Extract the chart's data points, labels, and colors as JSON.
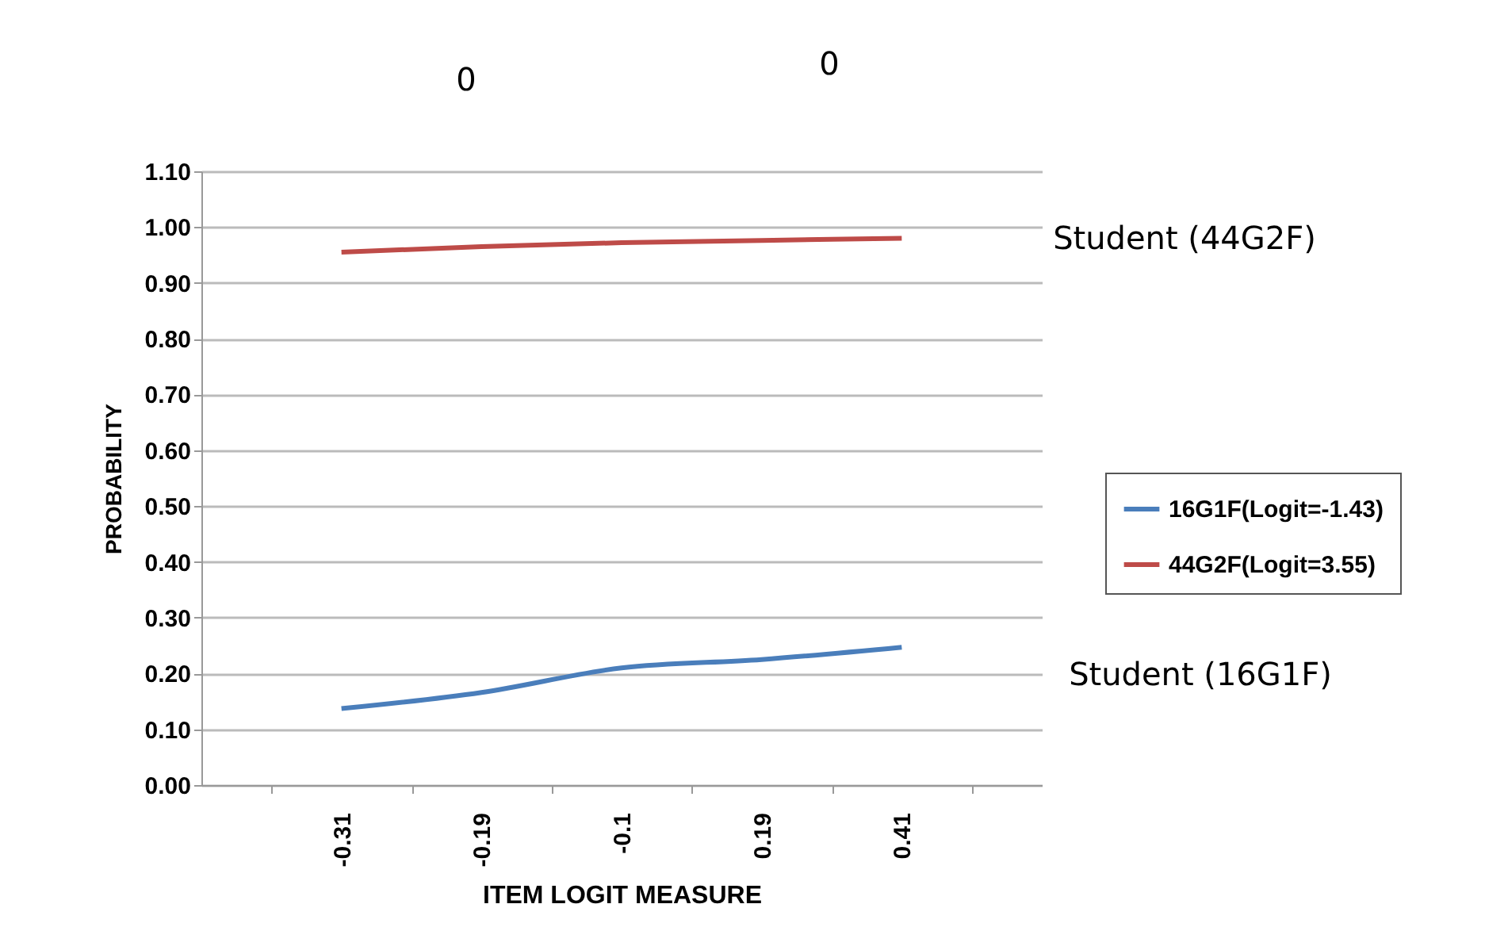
{
  "chart_data": {
    "type": "line",
    "xlabel": "ITEM LOGIT MEASURE",
    "ylabel": "PROBABILITY",
    "categories": [
      "-0.31",
      "-0.19",
      "-0.1",
      "0.19",
      "0.41"
    ],
    "series": [
      {
        "name": "16G1F(Logit=-1.43)",
        "color": "#4a7ebb",
        "values": [
          0.137,
          0.166,
          0.21,
          0.225,
          0.247
        ]
      },
      {
        "name": "44G2F(Logit=3.55)",
        "color": "#be4b48",
        "values": [
          0.955,
          0.965,
          0.972,
          0.976,
          0.98
        ]
      }
    ],
    "ylim": [
      0,
      1.1
    ],
    "yticks": [
      {
        "value": 0,
        "label": "0.00"
      },
      {
        "value": 0.1,
        "label": "0.10"
      },
      {
        "value": 0.2,
        "label": "0.20"
      },
      {
        "value": 0.3,
        "label": "0.30"
      },
      {
        "value": 0.4,
        "label": "0.40"
      },
      {
        "value": 0.5,
        "label": "0.50"
      },
      {
        "value": 0.6,
        "label": "0.60"
      },
      {
        "value": 0.7,
        "label": "0.70"
      },
      {
        "value": 0.8,
        "label": "0.80"
      },
      {
        "value": 0.9,
        "label": "0.90"
      },
      {
        "value": 1,
        "label": "1.00"
      },
      {
        "value": 1.1,
        "label": "1.10"
      }
    ],
    "grid": "y",
    "legend": "right",
    "marker": "none",
    "line_style": "solid",
    "annotations": [
      "0",
      "0",
      "Student (44G2F)",
      "Student (16G1F)"
    ]
  }
}
